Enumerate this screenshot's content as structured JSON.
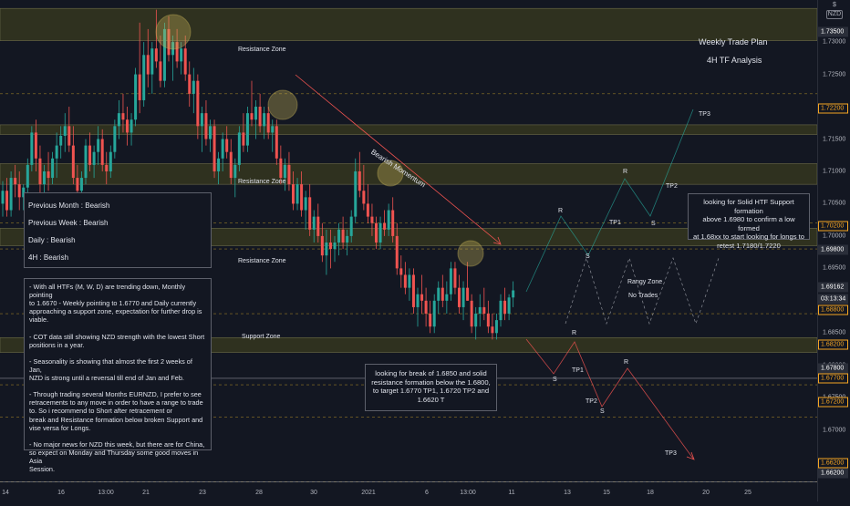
{
  "header": {
    "currency": "NZD",
    "currency_prefix": "$"
  },
  "titles": {
    "plan": "Weekly Trade Plan",
    "tf": "4H TF Analysis"
  },
  "zones": {
    "resistance_1": "Resistance Zone",
    "resistance_2": "Resistance Zone",
    "resistance_3": "Resistance Zone",
    "support": "Support Zone",
    "rangy": "Rangy Zone",
    "no_trades": "No Trades"
  },
  "annotations": {
    "momentum": "Bearish Momentum",
    "R1": "R",
    "S1": "S",
    "TP1_up": "TP1",
    "R2": "R",
    "S2": "S",
    "TP2_up": "TP2",
    "TP3_up": "TP3",
    "S3": "S",
    "R3": "R",
    "TP1_dn": "TP1",
    "TP2_dn": "TP2",
    "S4": "S",
    "R4": "R",
    "TP3_dn": "TP3"
  },
  "bias_box": {
    "lines": [
      "Previous Month : Bearish",
      "Previous Week : Bearish",
      "Daily : Bearish",
      "4H : Bearish"
    ]
  },
  "analysis_box": {
    "text": "- With all HTFs (M, W, D) are trending down, Monthly pointing\nto 1.6670 - Weekly pointing to 1.6770 and Daily currently\napproaching a support zone, expectation for further drop is\nviable.\n\n- COT data still showing NZD strength with the lowest Short\npositions in a year.\n\n- Seasonality is showing that almost the first 2 weeks of Jan,\nNZD is strong until a reversal till end of Jan and Feb.\n\n- Through trading several Months EURNZD, I prefer to see\nretracements to any move in order to have a range to trade\nto. So i recommend to Short after retracement or\nbreak and Resistance formation below broken Support and\nvise versa for Longs.\n\n- No major news for NZD this week, but there are for China,\nso expect on Monday and Thursday some good moves in Asia\nSession."
  },
  "long_plan": {
    "text": "looking for Solid HTF Support formation\nabove 1.6980 to confirm a low formed\nat 1.68xx to start looking for longs to\nretest 1.7180/1.7220"
  },
  "short_plan": {
    "text": "looking for break of 1.6850 and solid\nresistance formation below the 1.6800,\nto target 1.6770 TP1, 1.6720 TP2 and\n1.6620 T"
  },
  "price_tags": [
    {
      "value": "1.73500",
      "color": "#ffffff",
      "bg": "#2a2e39"
    },
    {
      "value": "1.72200",
      "color": "#f5a623",
      "bg": "#131722"
    },
    {
      "value": "1.70200",
      "color": "#f5a623",
      "bg": "#131722"
    },
    {
      "value": "1.69800",
      "color": "#ffffff",
      "bg": "#2a2e39"
    },
    {
      "value": "1.69162",
      "color": "#ffffff",
      "bg": "#2a2e39"
    },
    {
      "value": "03:13:34",
      "color": "#ffffff",
      "bg": "#2a2e39"
    },
    {
      "value": "1.68800",
      "color": "#f5a623",
      "bg": "#131722"
    },
    {
      "value": "1.68200",
      "color": "#f5a623",
      "bg": "#131722"
    },
    {
      "value": "1.67800",
      "color": "#ffffff",
      "bg": "#2a2e39"
    },
    {
      "value": "1.67700",
      "color": "#f5a623",
      "bg": "#131722"
    },
    {
      "value": "1.67200",
      "color": "#f5a623",
      "bg": "#131722"
    },
    {
      "value": "1.66200",
      "color": "#f5a623",
      "bg": "#131722"
    },
    {
      "value": "1.66200",
      "color": "#ffffff",
      "bg": "#2a2e39"
    }
  ],
  "chart_data": {
    "type": "candlestick",
    "symbol_currency": "NZD",
    "y_ticks": [
      "1.73000",
      "1.72500",
      "1.71500",
      "1.71000",
      "1.70500",
      "1.70000",
      "1.69500",
      "1.69000",
      "1.68500",
      "1.68000",
      "1.67500",
      "1.67000",
      "1.66500"
    ],
    "ylim": [
      1.6615,
      1.7365
    ],
    "x_ticks": [
      "14",
      "16",
      "13:00",
      "21",
      "23",
      "28",
      "30",
      "2021",
      "6",
      "13:00",
      "11",
      "13",
      "15",
      "18",
      "20",
      "25"
    ],
    "x_range": [
      0,
      185
    ],
    "zones": [
      {
        "name": "Resistance Zone",
        "low": 1.7302,
        "high": 1.7352
      },
      {
        "name": "Resistance Zone",
        "low": 1.7157,
        "high": 1.7172
      },
      {
        "name": "Resistance Zone",
        "low": 1.708,
        "high": 1.7112
      },
      {
        "name": "Resistance Zone",
        "low": 1.6985,
        "high": 1.7012
      },
      {
        "name": "Support Zone",
        "low": 1.682,
        "high": 1.6843
      }
    ],
    "dashed_levels": [
      1.722,
      1.702,
      1.698,
      1.688,
      1.677,
      1.672,
      1.662
    ],
    "solid_levels": [
      1.678,
      1.662
    ],
    "candles": [
      [
        0,
        1.705,
        1.7085,
        1.703,
        1.707
      ],
      [
        1,
        1.707,
        1.709,
        1.703,
        1.704
      ],
      [
        2,
        1.704,
        1.71,
        1.703,
        1.709
      ],
      [
        3,
        1.709,
        1.711,
        1.706,
        1.708
      ],
      [
        4,
        1.708,
        1.71,
        1.704,
        1.706
      ],
      [
        5,
        1.706,
        1.708,
        1.704,
        1.7075
      ],
      [
        6,
        1.7075,
        1.712,
        1.706,
        1.711
      ],
      [
        7,
        1.711,
        1.717,
        1.71,
        1.716
      ],
      [
        8,
        1.716,
        1.718,
        1.71,
        1.712
      ],
      [
        9,
        1.712,
        1.714,
        1.706,
        1.708
      ],
      [
        10,
        1.708,
        1.711,
        1.705,
        1.71
      ],
      [
        11,
        1.71,
        1.713,
        1.707,
        1.709
      ],
      [
        12,
        1.709,
        1.713,
        1.708,
        1.712
      ],
      [
        13,
        1.712,
        1.716,
        1.709,
        1.714
      ],
      [
        14,
        1.714,
        1.717,
        1.712,
        1.7155
      ],
      [
        15,
        1.7155,
        1.719,
        1.713,
        1.717
      ],
      [
        16,
        1.717,
        1.72,
        1.713,
        1.714
      ],
      [
        17,
        1.714,
        1.717,
        1.708,
        1.709
      ],
      [
        18,
        1.709,
        1.711,
        1.705,
        1.707
      ],
      [
        19,
        1.707,
        1.71,
        1.704,
        1.709
      ],
      [
        20,
        1.709,
        1.715,
        1.708,
        1.714
      ],
      [
        21,
        1.714,
        1.716,
        1.71,
        1.711
      ],
      [
        22,
        1.711,
        1.714,
        1.709,
        1.713
      ],
      [
        23,
        1.713,
        1.717,
        1.711,
        1.715
      ],
      [
        24,
        1.715,
        1.7165,
        1.71,
        1.711
      ],
      [
        25,
        1.711,
        1.713,
        1.708,
        1.71
      ],
      [
        26,
        1.71,
        1.714,
        1.709,
        1.713
      ],
      [
        27,
        1.713,
        1.718,
        1.712,
        1.717
      ],
      [
        28,
        1.717,
        1.721,
        1.715,
        1.719
      ],
      [
        29,
        1.719,
        1.722,
        1.716,
        1.718
      ],
      [
        30,
        1.718,
        1.72,
        1.714,
        1.716
      ],
      [
        31,
        1.716,
        1.719,
        1.714,
        1.718
      ],
      [
        32,
        1.718,
        1.726,
        1.717,
        1.725
      ],
      [
        33,
        1.725,
        1.733,
        1.719,
        1.721
      ],
      [
        34,
        1.721,
        1.73,
        1.72,
        1.728
      ],
      [
        35,
        1.728,
        1.732,
        1.723,
        1.725
      ],
      [
        36,
        1.725,
        1.73,
        1.722,
        1.729
      ],
      [
        37,
        1.729,
        1.735,
        1.726,
        1.727
      ],
      [
        38,
        1.727,
        1.731,
        1.723,
        1.724
      ],
      [
        39,
        1.724,
        1.733,
        1.723,
        1.732
      ],
      [
        40,
        1.732,
        1.734,
        1.727,
        1.728
      ],
      [
        41,
        1.728,
        1.731,
        1.724,
        1.73
      ],
      [
        42,
        1.73,
        1.732,
        1.726,
        1.727
      ],
      [
        43,
        1.727,
        1.73,
        1.725,
        1.729
      ],
      [
        44,
        1.729,
        1.731,
        1.724,
        1.725
      ],
      [
        45,
        1.725,
        1.727,
        1.72,
        1.722
      ],
      [
        46,
        1.722,
        1.726,
        1.719,
        1.724
      ],
      [
        47,
        1.724,
        1.725,
        1.715,
        1.717
      ],
      [
        48,
        1.717,
        1.72,
        1.713,
        1.719
      ],
      [
        49,
        1.719,
        1.721,
        1.714,
        1.715
      ],
      [
        50,
        1.715,
        1.718,
        1.713,
        1.717
      ],
      [
        51,
        1.717,
        1.718,
        1.709,
        1.71
      ],
      [
        52,
        1.71,
        1.713,
        1.708,
        1.712
      ],
      [
        53,
        1.712,
        1.716,
        1.71,
        1.715
      ],
      [
        54,
        1.715,
        1.717,
        1.712,
        1.713
      ],
      [
        55,
        1.713,
        1.715,
        1.708,
        1.709
      ],
      [
        56,
        1.709,
        1.712,
        1.706,
        1.711
      ],
      [
        57,
        1.711,
        1.717,
        1.71,
        1.716
      ],
      [
        58,
        1.716,
        1.719,
        1.713,
        1.714
      ],
      [
        59,
        1.714,
        1.72,
        1.713,
        1.719
      ],
      [
        60,
        1.719,
        1.724,
        1.717,
        1.718
      ],
      [
        61,
        1.718,
        1.721,
        1.715,
        1.72
      ],
      [
        62,
        1.72,
        1.722,
        1.716,
        1.717
      ],
      [
        63,
        1.717,
        1.72,
        1.715,
        1.719
      ],
      [
        64,
        1.719,
        1.72,
        1.715,
        1.716
      ],
      [
        65,
        1.716,
        1.718,
        1.713,
        1.717
      ],
      [
        66,
        1.717,
        1.718,
        1.711,
        1.712
      ],
      [
        67,
        1.712,
        1.714,
        1.708,
        1.709
      ],
      [
        68,
        1.709,
        1.712,
        1.707,
        1.711
      ],
      [
        69,
        1.711,
        1.713,
        1.707,
        1.708
      ],
      [
        70,
        1.708,
        1.71,
        1.704,
        1.705
      ],
      [
        71,
        1.705,
        1.709,
        1.704,
        1.708
      ],
      [
        72,
        1.708,
        1.71,
        1.703,
        1.704
      ],
      [
        73,
        1.704,
        1.707,
        1.701,
        1.706
      ],
      [
        74,
        1.706,
        1.708,
        1.7,
        1.701
      ],
      [
        75,
        1.701,
        1.704,
        1.699,
        1.703
      ],
      [
        76,
        1.703,
        1.705,
        1.699,
        1.7
      ],
      [
        77,
        1.7,
        1.702,
        1.696,
        1.697
      ],
      [
        78,
        1.697,
        1.701,
        1.694,
        1.699
      ],
      [
        79,
        1.699,
        1.701,
        1.695,
        1.698
      ],
      [
        80,
        1.698,
        1.7,
        1.696,
        1.699
      ],
      [
        81,
        1.699,
        1.702,
        1.697,
        1.701
      ],
      [
        82,
        1.701,
        1.703,
        1.698,
        1.699
      ],
      [
        83,
        1.699,
        1.701,
        1.697,
        1.7
      ],
      [
        84,
        1.7,
        1.704,
        1.699,
        1.703
      ],
      [
        85,
        1.703,
        1.712,
        1.702,
        1.71
      ],
      [
        86,
        1.71,
        1.713,
        1.706,
        1.707
      ],
      [
        87,
        1.707,
        1.711,
        1.704,
        1.705
      ],
      [
        88,
        1.705,
        1.708,
        1.702,
        1.703
      ],
      [
        89,
        1.703,
        1.705,
        1.7,
        1.702
      ],
      [
        90,
        1.702,
        1.703,
        1.698,
        1.699
      ],
      [
        91,
        1.699,
        1.703,
        1.698,
        1.702
      ],
      [
        92,
        1.702,
        1.704,
        1.7,
        1.701
      ],
      [
        93,
        1.701,
        1.705,
        1.7,
        1.704
      ],
      [
        94,
        1.704,
        1.706,
        1.699,
        1.7
      ],
      [
        95,
        1.7,
        1.702,
        1.694,
        1.695
      ],
      [
        96,
        1.695,
        1.697,
        1.692,
        1.694
      ],
      [
        97,
        1.694,
        1.696,
        1.691,
        1.692
      ],
      [
        98,
        1.692,
        1.695,
        1.69,
        1.694
      ],
      [
        99,
        1.694,
        1.695,
        1.688,
        1.689
      ],
      [
        100,
        1.689,
        1.692,
        1.686,
        1.691
      ],
      [
        101,
        1.691,
        1.694,
        1.688,
        1.69
      ],
      [
        102,
        1.69,
        1.692,
        1.686,
        1.688
      ],
      [
        103,
        1.688,
        1.69,
        1.685,
        1.686
      ],
      [
        104,
        1.686,
        1.691,
        1.685,
        1.69
      ],
      [
        105,
        1.69,
        1.693,
        1.688,
        1.692
      ],
      [
        106,
        1.692,
        1.694,
        1.689,
        1.69
      ],
      [
        107,
        1.69,
        1.693,
        1.688,
        1.691
      ],
      [
        108,
        1.691,
        1.696,
        1.69,
        1.695
      ],
      [
        109,
        1.695,
        1.696,
        1.691,
        1.692
      ],
      [
        110,
        1.692,
        1.694,
        1.688,
        1.689
      ],
      [
        111,
        1.689,
        1.693,
        1.687,
        1.692
      ],
      [
        112,
        1.692,
        1.696,
        1.69,
        1.69
      ],
      [
        113,
        1.69,
        1.691,
        1.685,
        1.686
      ],
      [
        114,
        1.686,
        1.689,
        1.684,
        1.688
      ],
      [
        115,
        1.688,
        1.691,
        1.686,
        1.689
      ],
      [
        116,
        1.689,
        1.692,
        1.687,
        1.688
      ],
      [
        117,
        1.688,
        1.69,
        1.685,
        1.686
      ],
      [
        118,
        1.686,
        1.688,
        1.684,
        1.685
      ],
      [
        119,
        1.685,
        1.688,
        1.684,
        1.687
      ],
      [
        120,
        1.687,
        1.691,
        1.686,
        1.69
      ],
      [
        121,
        1.69,
        1.692,
        1.687,
        1.688
      ],
      [
        122,
        1.688,
        1.691,
        1.687,
        1.6905
      ],
      [
        123,
        1.6905,
        1.693,
        1.689,
        1.6916
      ]
    ]
  }
}
